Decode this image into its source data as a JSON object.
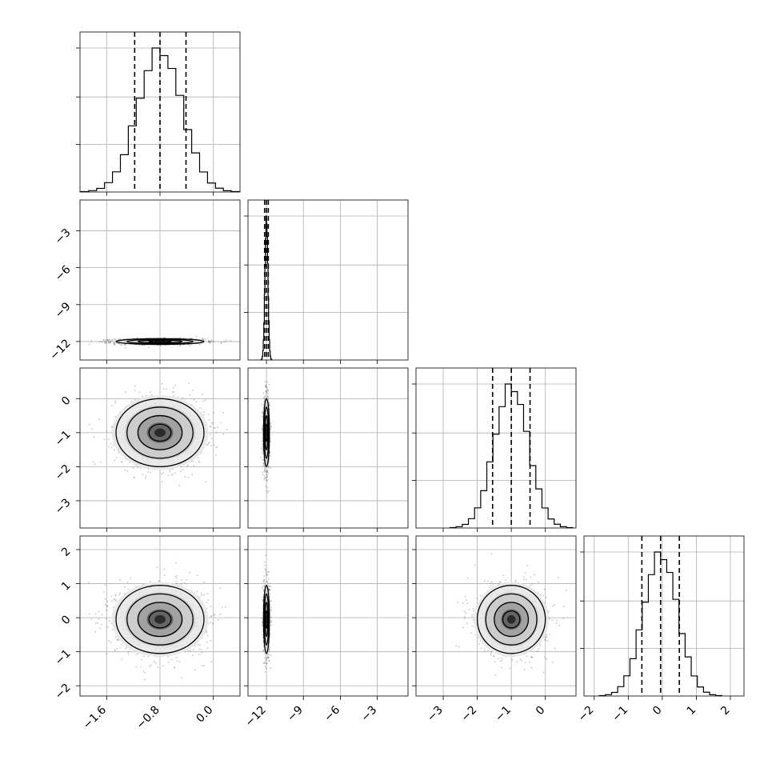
{
  "chart_data": {
    "type": "corner",
    "parameters": [
      {
        "index": 0,
        "range": [
          -2.0,
          0.4
        ],
        "ticks": [
          -1.6,
          -0.8,
          0.0
        ],
        "tick_labels": [
          "−1.6",
          "−0.8",
          "0.0"
        ],
        "mean": -0.8,
        "std": 0.33,
        "quantiles": [
          -1.18,
          -0.8,
          -0.41
        ]
      },
      {
        "index": 1,
        "range": [
          -13.5,
          -0.5
        ],
        "ticks": [
          -12,
          -9,
          -6,
          -3
        ],
        "tick_labels": [
          "−12",
          "−9",
          "−6",
          "−3"
        ],
        "mean": -12.0,
        "std": 0.12,
        "quantiles": [
          -12.15,
          -12.0,
          -11.85
        ]
      },
      {
        "index": 2,
        "range": [
          -3.8,
          0.9
        ],
        "ticks": [
          -3,
          -2,
          -1,
          0
        ],
        "tick_labels": [
          "−3",
          "−2",
          "−1",
          "0"
        ],
        "mean": -1.0,
        "std": 0.5,
        "quantiles": [
          -1.55,
          -1.0,
          -0.45
        ]
      },
      {
        "index": 3,
        "range": [
          -2.3,
          2.4
        ],
        "ticks": [
          -2,
          -1,
          0,
          1,
          2
        ],
        "tick_labels": [
          "−2",
          "−1",
          "0",
          "1",
          "2"
        ],
        "mean": -0.05,
        "std": 0.5,
        "quantiles": [
          -0.6,
          -0.05,
          0.5
        ]
      }
    ],
    "histogram_bins": 20,
    "contour_levels": [
      0.5,
      1.0,
      1.5,
      2.0
    ],
    "grid": true,
    "legend": "none"
  }
}
